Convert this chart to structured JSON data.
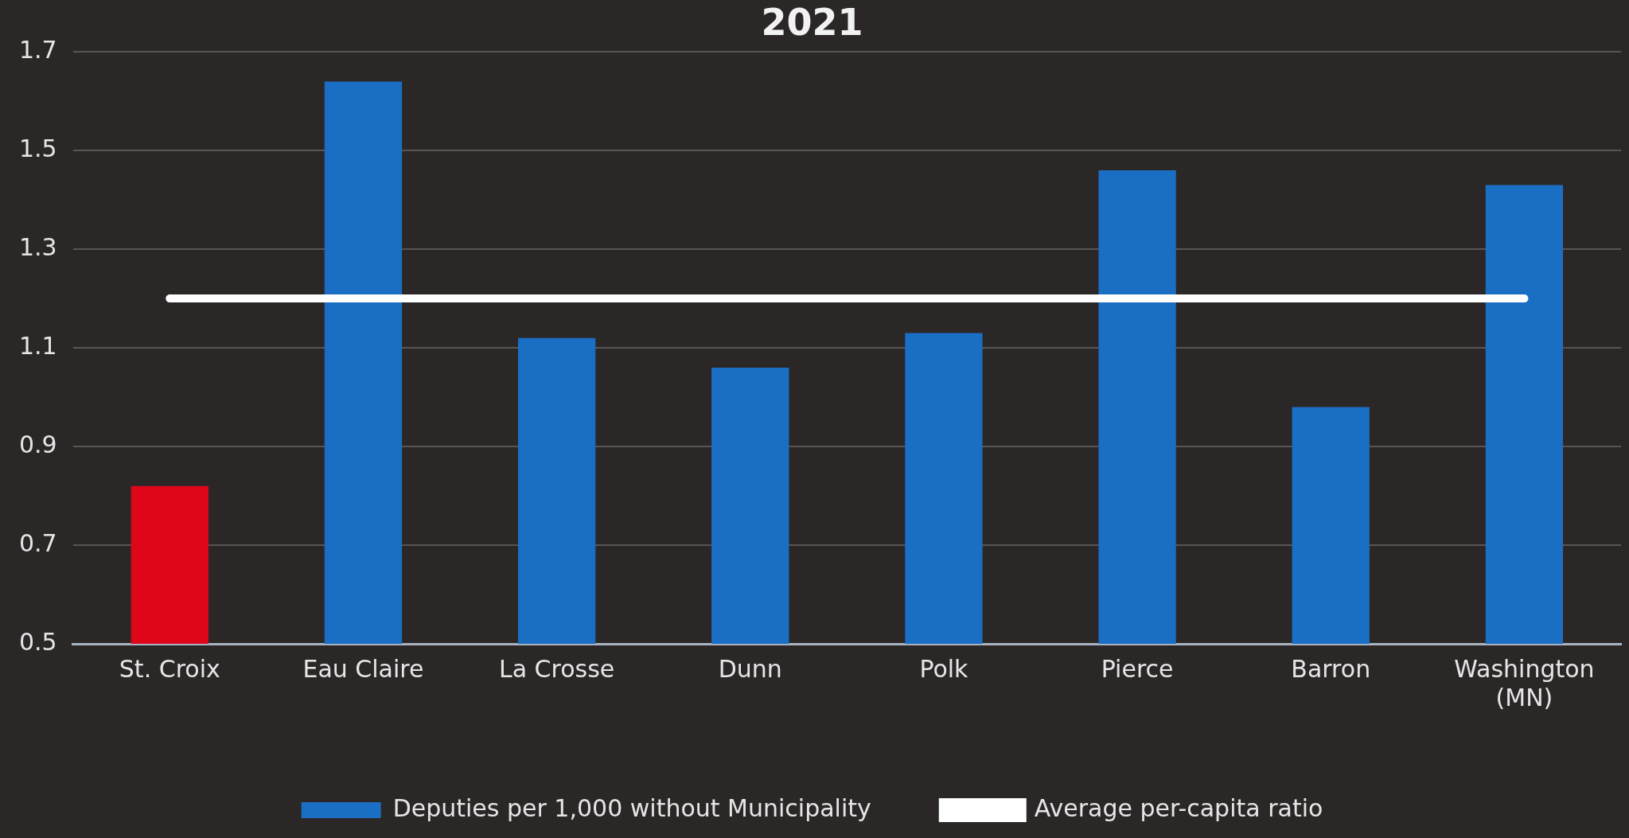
{
  "chart_data": {
    "type": "bar",
    "title": "2021",
    "categories": [
      "St. Croix",
      "Eau Claire",
      "La Crosse",
      "Dunn",
      "Polk",
      "Pierce",
      "Barron",
      "Washington (MN)"
    ],
    "series": [
      {
        "name": "Deputies per 1,000 without Municipality",
        "color": "#1a6fc4",
        "colors": [
          "#e0061a",
          "#1a6fc4",
          "#1a6fc4",
          "#1a6fc4",
          "#1a6fc4",
          "#1a6fc4",
          "#1a6fc4",
          "#1a6fc4"
        ],
        "values": [
          0.82,
          1.64,
          1.12,
          1.06,
          1.13,
          1.46,
          0.98,
          1.43
        ]
      },
      {
        "type": "line",
        "name": "Average per-capita ratio",
        "color": "#ffffff",
        "values": [
          1.2,
          1.2,
          1.2,
          1.2,
          1.2,
          1.2,
          1.2,
          1.2
        ]
      }
    ],
    "ylim": [
      0.5,
      1.7
    ],
    "yticks": [
      0.5,
      0.7,
      0.9,
      1.1,
      1.3,
      1.5,
      1.7
    ],
    "grid": "y",
    "legend": "bottom",
    "marker": "none",
    "line_style": "solid"
  }
}
